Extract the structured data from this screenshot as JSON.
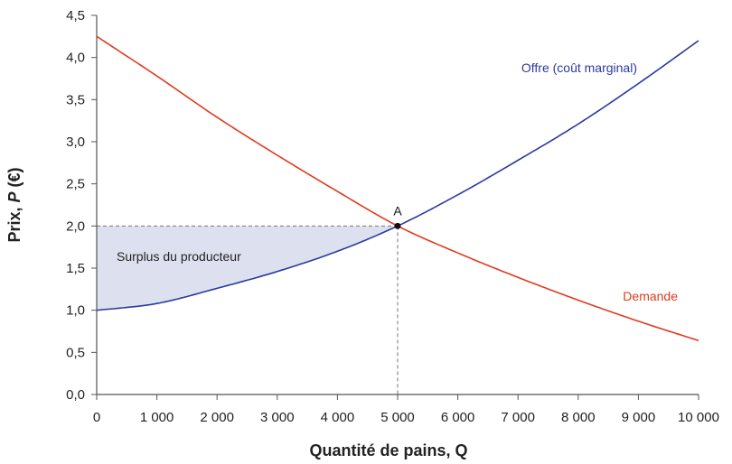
{
  "chart_data": {
    "type": "line",
    "xlabel": "Quantité de pains, Q",
    "ylabel_prefix": "Prix, ",
    "ylabel_var": "P",
    "ylabel_unit": " (€)",
    "xlim": [
      0,
      10000
    ],
    "ylim": [
      0,
      4.5
    ],
    "grid": false,
    "x_ticks": [
      0,
      1000,
      2000,
      3000,
      4000,
      5000,
      6000,
      7000,
      8000,
      9000,
      10000
    ],
    "x_tick_labels": [
      "0",
      "1 000",
      "2 000",
      "3 000",
      "4 000",
      "5 000",
      "6 000",
      "7 000",
      "8 000",
      "9 000",
      "10 000"
    ],
    "y_ticks": [
      0,
      0.5,
      1,
      1.5,
      2,
      2.5,
      3,
      3.5,
      4,
      4.5
    ],
    "y_tick_labels": [
      "0,0",
      "0,5",
      "1,0",
      "1,5",
      "2,0",
      "2,5",
      "3,0",
      "3,5",
      "4,0",
      "4,5"
    ],
    "series": [
      {
        "name": "Offre (coût marginal)",
        "color": "#2b3a9c",
        "x": [
          0,
          1000,
          2000,
          3000,
          4000,
          5000,
          6000,
          7000,
          8000,
          9000,
          10000
        ],
        "y": [
          1.0,
          1.08,
          1.26,
          1.46,
          1.7,
          2.0,
          2.37,
          2.78,
          3.21,
          3.69,
          4.2
        ]
      },
      {
        "name": "Demande",
        "color": "#e03a1e",
        "x": [
          0,
          1000,
          2000,
          3000,
          4000,
          5000,
          6000,
          7000,
          8000,
          9000,
          10000
        ],
        "y": [
          4.25,
          3.78,
          3.29,
          2.84,
          2.41,
          2.0,
          1.68,
          1.39,
          1.12,
          0.87,
          0.64
        ]
      }
    ],
    "equilibrium": {
      "label": "A",
      "x": 5000,
      "y": 2.0
    },
    "shaded_region": {
      "label": "Surplus du producteur",
      "color": "#dde1ef",
      "between_price": 2.0,
      "from_x": 0,
      "to_x": 5000
    }
  }
}
